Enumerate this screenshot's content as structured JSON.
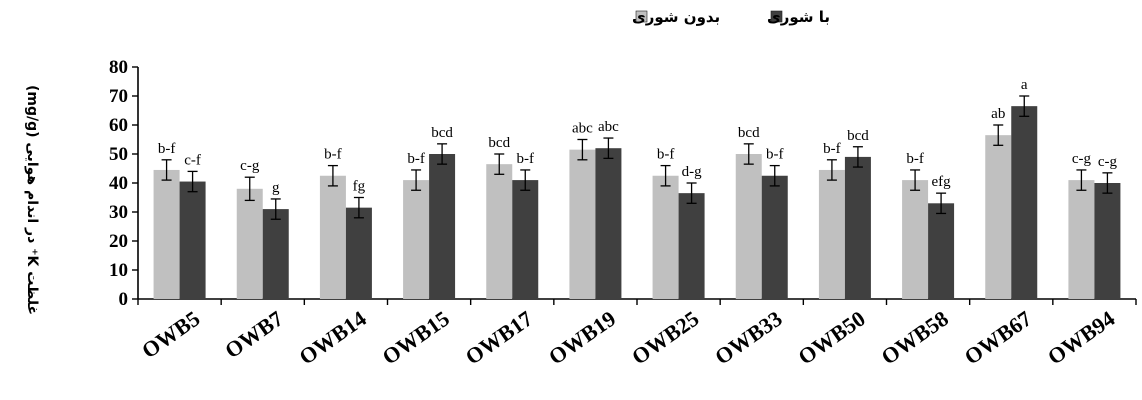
{
  "colors": {
    "no_salinity": "#c0c0c0",
    "salinity": "#404040",
    "axis": "#000000"
  },
  "chart_data": {
    "type": "bar",
    "ylabel": "غلظت K⁺ در اندام هوایی (mg/g)",
    "ylim": [
      0,
      80
    ],
    "yticks": [
      0,
      10,
      20,
      30,
      40,
      50,
      60,
      70,
      80
    ],
    "grid": false,
    "legend_position": "top-center",
    "categories": [
      "OWB5",
      "OWB7",
      "OWB14",
      "OWB15",
      "OWB17",
      "OWB19",
      "OWB25",
      "OWB33",
      "OWB50",
      "OWB58",
      "OWB67",
      "OWB94"
    ],
    "series": [
      {
        "name": "بدون شوری",
        "color": "#c0c0c0",
        "values": [
          44.5,
          38,
          42.5,
          41,
          46.5,
          51.5,
          42.5,
          50,
          44.5,
          41,
          56.5,
          41
        ],
        "errors": [
          3.5,
          4,
          3.5,
          3.5,
          3.5,
          3.5,
          3.5,
          3.5,
          3.5,
          3.5,
          3.5,
          3.5
        ],
        "labels": [
          "b-f",
          "c-g",
          "b-f",
          "b-f",
          "bcd",
          "abc",
          "b-f",
          "bcd",
          "b-f",
          "b-f",
          "ab",
          "c-g"
        ]
      },
      {
        "name": "با شوری",
        "color": "#404040",
        "values": [
          40.5,
          31,
          31.5,
          50,
          41,
          52,
          36.5,
          42.5,
          49,
          33,
          66.5,
          40
        ],
        "errors": [
          3.5,
          3.5,
          3.5,
          3.5,
          3.5,
          3.5,
          3.5,
          3.5,
          3.5,
          3.5,
          3.5,
          3.5
        ],
        "labels": [
          "c-f",
          "g",
          "fg",
          "bcd",
          "b-f",
          "abc",
          "d-g",
          "b-f",
          "bcd",
          "efg",
          "a",
          "c-g"
        ]
      }
    ]
  }
}
